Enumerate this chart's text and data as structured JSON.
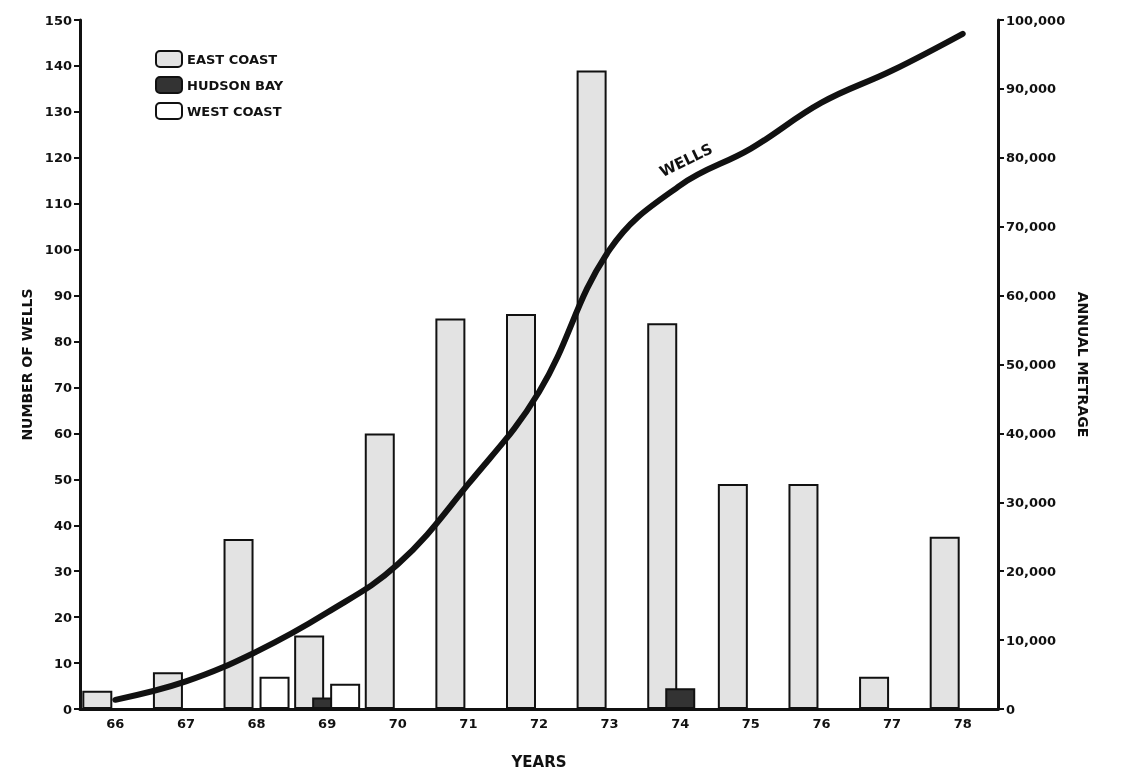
{
  "chart_data": {
    "type": "bar",
    "xlabel": "YEARS",
    "ylabel": "NUMBER OF WELLS",
    "y2label": "ANNUAL METRAGE",
    "categories": [
      "66",
      "67",
      "68",
      "69",
      "70",
      "71",
      "72",
      "73",
      "74",
      "75",
      "76",
      "77",
      "78"
    ],
    "series": [
      {
        "name": "EAST COAST",
        "color": "#e3e3e3",
        "values": [
          4,
          8,
          37,
          16,
          60,
          85,
          86,
          139,
          84,
          49,
          49,
          7,
          37.5
        ]
      },
      {
        "name": "HUDSON BAY",
        "color": "#333333",
        "values": [
          null,
          null,
          null,
          2.5,
          null,
          null,
          null,
          null,
          4.5,
          null,
          null,
          null,
          null
        ]
      },
      {
        "name": "WEST COAST",
        "color": "#ffffff",
        "values": [
          null,
          null,
          7,
          5.5,
          null,
          null,
          null,
          null,
          null,
          null,
          null,
          null,
          null
        ]
      },
      {
        "type": "line",
        "name": "WELLS",
        "color": "#111111",
        "values": [
          2,
          6,
          12.5,
          21,
          31.5,
          49,
          69,
          100,
          114,
          122,
          132,
          139,
          147
        ]
      }
    ],
    "ylim": [
      0,
      150
    ],
    "yticks": [
      0,
      10,
      20,
      30,
      40,
      50,
      60,
      70,
      80,
      90,
      100,
      110,
      120,
      130,
      140,
      150
    ],
    "y2lim": [
      0,
      100000
    ],
    "y2ticks": [
      0,
      {
        "value": 10000,
        "label": "10,000"
      },
      {
        "value": 20000,
        "label": "20,000"
      },
      {
        "value": 30000,
        "label": "30,000"
      },
      {
        "value": 40000,
        "label": "40,000"
      },
      {
        "value": 50000,
        "label": "50,000"
      },
      {
        "value": 60000,
        "label": "60,000"
      },
      {
        "value": 70000,
        "label": "70,000"
      },
      {
        "value": 80000,
        "label": "80,000"
      },
      {
        "value": 90000,
        "label": "90,000"
      },
      {
        "value": 100000,
        "label": "100,000"
      }
    ],
    "grid": false,
    "legend": "top left",
    "marker": "none",
    "line_style": "solid"
  }
}
